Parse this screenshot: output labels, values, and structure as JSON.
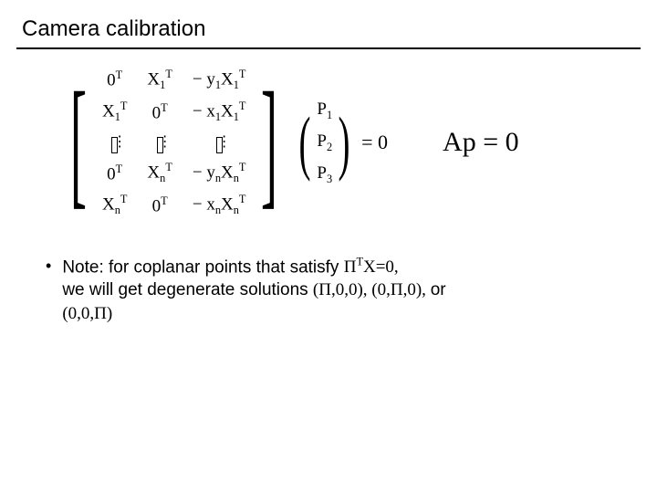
{
  "title": "Camera calibration",
  "matrix": {
    "rows": [
      [
        "0<sup>T</sup>",
        "X<sub>1</sub><sup>T</sup>",
        "− y<sub>1</sub>X<sub>1</sub><sup>T</sup>"
      ],
      [
        "X<sub>1</sub><sup>T</sup>",
        "0<sup>T</sup>",
        "− x<sub>1</sub>X<sub>1</sub><sup>T</sup>"
      ],
      [
        "⋮",
        "⋮",
        "⋮"
      ],
      [
        "0<sup>T</sup>",
        "X<sub>n</sub><sup>T</sup>",
        "− y<sub>n</sub>X<sub>n</sub><sup>T</sup>"
      ],
      [
        "X<sub>n</sub><sup>T</sup>",
        "0<sup>T</sup>",
        "− x<sub>n</sub>X<sub>n</sub><sup>T</sup>"
      ]
    ]
  },
  "vector": [
    "P<sub>1</sub>",
    "P<sub>2</sub>",
    "P<sub>3</sub>"
  ],
  "eq_zero": "= 0",
  "side_equation": "Ap = 0",
  "bullet_lead": "Note: for coplanar points that satisfy ",
  "bullet_cond": "Π<sup>T</sup>X=0,",
  "bullet_line2a": "we will get degenerate solutions ",
  "bullet_sols": "(Π,0,0), (0,Π,0), ",
  "bullet_or": "or",
  "bullet_line3": "(0,0,Π)",
  "colors": {
    "text": "#000000",
    "background": "#ffffff",
    "rule": "#000000"
  },
  "fonts": {
    "title_size_pt": 24,
    "body_size_pt": 19,
    "math_size_pt": 20,
    "side_eq_size_pt": 30
  }
}
